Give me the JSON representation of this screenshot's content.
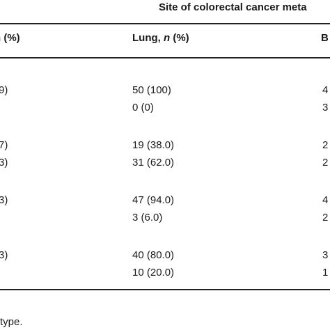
{
  "table": {
    "spanning_header": "Site of colorectal cancer meta",
    "columns": {
      "left_partial": "n (%)",
      "lung_label": "Lung, ",
      "lung_n": "n",
      "lung_pct": " (%)",
      "right_partial": "B"
    },
    "rows": [
      {
        "left": "9)",
        "lung": "50 (100)",
        "right": "4"
      },
      {
        "left": "",
        "lung": "0 (0)",
        "right": "3"
      },
      {
        "left": "7)",
        "lung": "19 (38.0)",
        "right": "2"
      },
      {
        "left": "3)",
        "lung": "31 (62.0)",
        "right": "2"
      },
      {
        "left": "3)",
        "lung": "47 (94.0)",
        "right": "4"
      },
      {
        "left": "",
        "lung": "3 (6.0)",
        "right": "2"
      },
      {
        "left": "3)",
        "lung": "40 (80.0)",
        "right": "3"
      },
      {
        "left": "",
        "lung": "10 (20.0)",
        "right": "1"
      }
    ],
    "footnote": "type."
  }
}
